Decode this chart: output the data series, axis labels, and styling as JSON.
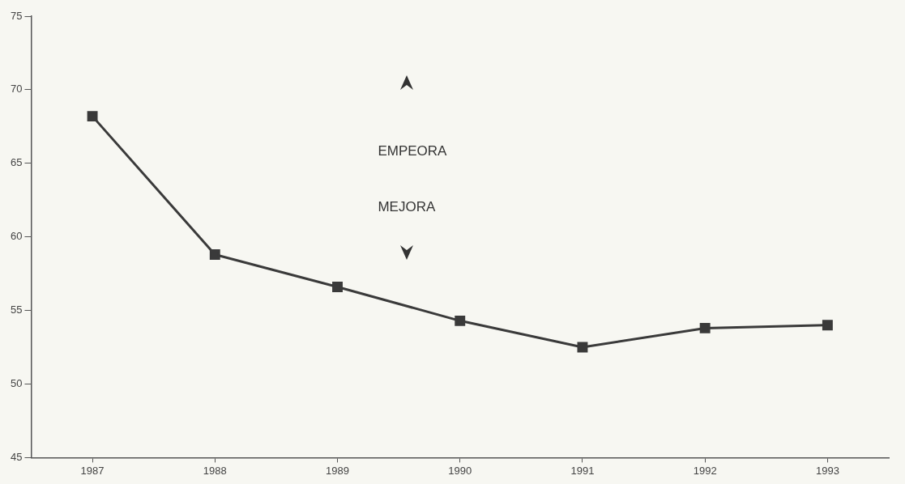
{
  "chart_data": {
    "type": "line",
    "categories": [
      "1987",
      "1988",
      "1989",
      "1990",
      "1991",
      "1992",
      "1993"
    ],
    "series": [
      {
        "color": "#3a3a3a",
        "values": [
          68.2,
          58.8,
          56.6,
          54.3,
          52.5,
          53.8,
          54.0
        ]
      }
    ],
    "ylim": [
      45,
      75
    ],
    "yticks": [
      45,
      50,
      55,
      60,
      65,
      70,
      75
    ],
    "grid": false,
    "legend": false,
    "marker": "square",
    "line_style": "solid",
    "annotations": [
      "EMPEORA",
      "MEJORA"
    ]
  }
}
